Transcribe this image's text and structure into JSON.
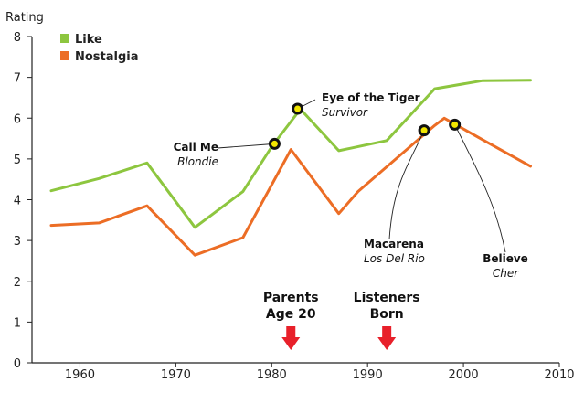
{
  "chart_data": {
    "type": "line",
    "title": "",
    "xlabel": "",
    "ylabel": "Rating",
    "xlim": [
      1955,
      2010
    ],
    "ylim": [
      0,
      8
    ],
    "x_ticks": [
      1960,
      1970,
      1980,
      1990,
      2000,
      2010
    ],
    "y_ticks": [
      0,
      1,
      2,
      3,
      4,
      5,
      6,
      7,
      8
    ],
    "legend_position": "top-left",
    "series": [
      {
        "name": "Like",
        "color": "#8dc63f",
        "x": [
          1957,
          1962,
          1967,
          1972,
          1977,
          1980,
          1983,
          1987,
          1992,
          1997,
          2002,
          2007
        ],
        "values": [
          4.22,
          4.52,
          4.9,
          3.32,
          4.2,
          5.3,
          6.22,
          5.2,
          5.45,
          6.72,
          6.92,
          6.93
        ]
      },
      {
        "name": "Nostalgia",
        "color": "#ec6d25",
        "x": [
          1957,
          1962,
          1967,
          1972,
          1977,
          1982,
          1987,
          1989,
          1997,
          1998,
          2002,
          2007
        ],
        "values": [
          3.37,
          3.43,
          3.85,
          2.64,
          3.07,
          5.23,
          3.66,
          4.2,
          5.82,
          6.0,
          5.47,
          4.82
        ]
      }
    ],
    "annotations": [
      {
        "title": "Call Me",
        "subtitle": "Blondie",
        "x": 1980.3,
        "y": 5.37
      },
      {
        "title": "Eye of the Tiger",
        "subtitle": "Survivor",
        "x": 1982.7,
        "y": 6.23
      },
      {
        "title": "Macarena",
        "subtitle": "Los Del Rio",
        "x": 1995.9,
        "y": 5.7
      },
      {
        "title": "Believe",
        "subtitle": "Cher",
        "x": 1999.1,
        "y": 5.84
      }
    ],
    "events": [
      {
        "line1": "Parents",
        "line2": "Age 20",
        "x": 1982,
        "color": "#e8202a"
      },
      {
        "line1": "Listeners",
        "line2": "Born",
        "x": 1992,
        "color": "#e8202a"
      }
    ]
  }
}
